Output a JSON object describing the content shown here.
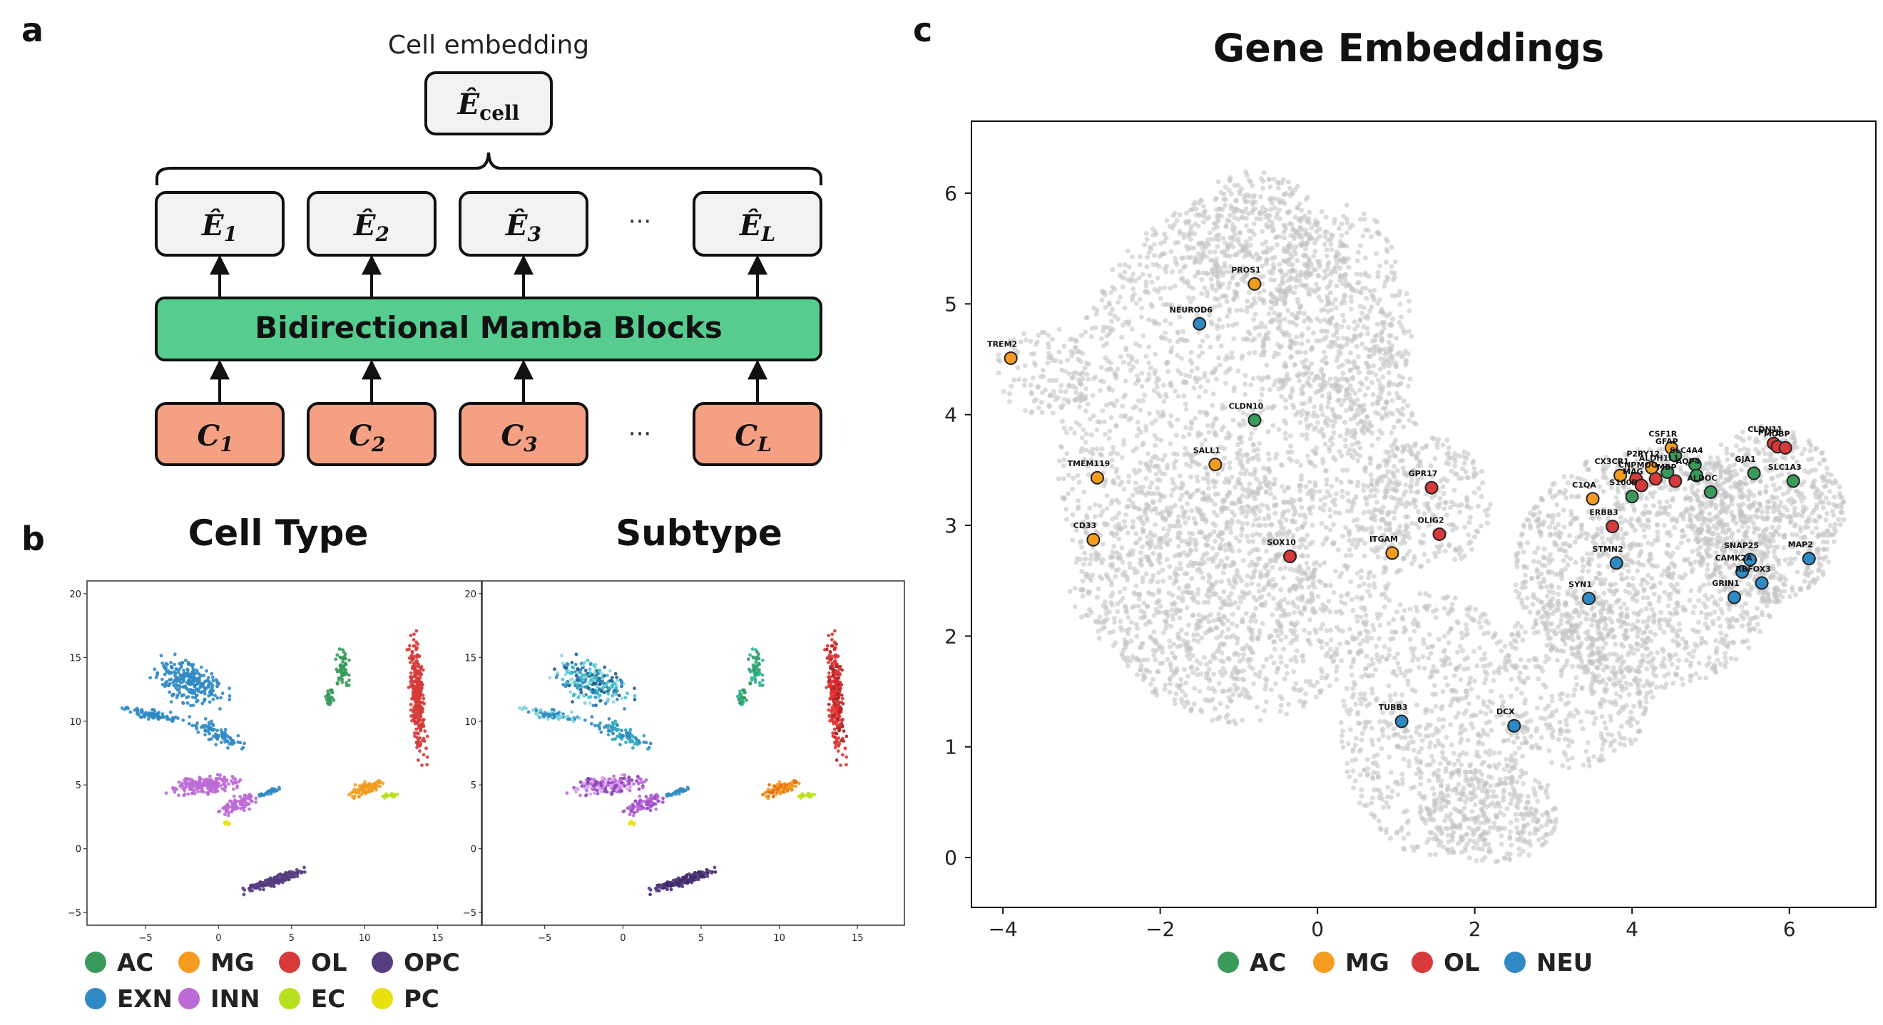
{
  "panels": {
    "a": {
      "letter": "a",
      "top_caption": "Cell embedding",
      "cell_box": {
        "main": "Ê",
        "sub": "cell"
      },
      "outputs": [
        {
          "main": "Ê",
          "sub": "1"
        },
        {
          "main": "Ê",
          "sub": "2"
        },
        {
          "main": "Ê",
          "sub": "3"
        },
        {
          "main": "Ê",
          "sub": "L"
        }
      ],
      "block_label": "Bidirectional Mamba Blocks",
      "inputs": [
        {
          "main": "C",
          "sub": "1"
        },
        {
          "main": "C",
          "sub": "2"
        },
        {
          "main": "C",
          "sub": "3"
        },
        {
          "main": "C",
          "sub": "L"
        }
      ],
      "ellipsis": "···",
      "colors": {
        "block": "#57cc8f",
        "input": "#f5a083",
        "output": "#f2f2f2"
      }
    },
    "b": {
      "letter": "b",
      "plots": [
        {
          "title": "Cell Type",
          "x_ticks": [
            "−5",
            "0",
            "5",
            "10",
            "15"
          ],
          "y_ticks": [
            "20",
            "15",
            "10",
            "5",
            "0",
            "−5"
          ]
        },
        {
          "title": "Subtype",
          "x_ticks": [
            "−5",
            "0",
            "5",
            "10",
            "15"
          ],
          "y_ticks": [
            "20",
            "15",
            "10",
            "5",
            "0",
            "−5"
          ]
        }
      ],
      "legend": [
        {
          "label": "AC",
          "color": "#3a9a5c"
        },
        {
          "label": "MG",
          "color": "#f39c1f"
        },
        {
          "label": "OL",
          "color": "#d63a3a"
        },
        {
          "label": "OPC",
          "color": "#553d7f"
        },
        {
          "label": "EXN",
          "color": "#2f89c4"
        },
        {
          "label": "INN",
          "color": "#bb6ad6"
        },
        {
          "label": "EC",
          "color": "#b8e01c"
        },
        {
          "label": "PC",
          "color": "#e8e010"
        }
      ]
    },
    "c": {
      "letter": "c",
      "chart_data": {
        "type": "scatter",
        "title": "Gene Embeddings",
        "xlim": [
          -4.4,
          7.1
        ],
        "ylim": [
          -0.45,
          6.65
        ],
        "x_ticks": [
          {
            "value": -4,
            "label": "−4"
          },
          {
            "value": -2,
            "label": "−2"
          },
          {
            "value": 0,
            "label": "0"
          },
          {
            "value": 2,
            "label": "2"
          },
          {
            "value": 4,
            "label": "4"
          },
          {
            "value": 6,
            "label": "6"
          }
        ],
        "y_ticks": [
          {
            "value": 0,
            "label": "0"
          },
          {
            "value": 1,
            "label": "1"
          },
          {
            "value": 2,
            "label": "2"
          },
          {
            "value": 3,
            "label": "3"
          },
          {
            "value": 4,
            "label": "4"
          },
          {
            "value": 5,
            "label": "5"
          },
          {
            "value": 6,
            "label": "6"
          }
        ],
        "background_color": "#c4c4c4",
        "legend": [
          {
            "label": "AC",
            "color": "#3a9a5c"
          },
          {
            "label": "MG",
            "color": "#f39c1f"
          },
          {
            "label": "OL",
            "color": "#d63a3a"
          },
          {
            "label": "NEU",
            "color": "#2f89c4"
          }
        ],
        "genes": [
          {
            "name": "PROS1",
            "x": -0.8,
            "y": 5.18,
            "type": "MG"
          },
          {
            "name": "NEUROD6",
            "x": -1.5,
            "y": 4.82,
            "type": "NEU"
          },
          {
            "name": "TREM2",
            "x": -3.9,
            "y": 4.51,
            "type": "MG"
          },
          {
            "name": "CLDN10",
            "x": -0.8,
            "y": 3.95,
            "type": "AC"
          },
          {
            "name": "SALL1",
            "x": -1.3,
            "y": 3.55,
            "type": "MG"
          },
          {
            "name": "TMEM119",
            "x": -2.8,
            "y": 3.43,
            "type": "MG"
          },
          {
            "name": "CD33",
            "x": -2.85,
            "y": 2.87,
            "type": "MG"
          },
          {
            "name": "SOX10",
            "x": -0.35,
            "y": 2.72,
            "type": "OL"
          },
          {
            "name": "GPR17",
            "x": 1.45,
            "y": 3.34,
            "type": "OL"
          },
          {
            "name": "OLIG2",
            "x": 1.55,
            "y": 2.92,
            "type": "OL"
          },
          {
            "name": "ITGAM",
            "x": 0.95,
            "y": 2.75,
            "type": "MG"
          },
          {
            "name": "TUBB3",
            "x": 1.07,
            "y": 1.23,
            "type": "NEU"
          },
          {
            "name": "DCX",
            "x": 2.5,
            "y": 1.19,
            "type": "NEU"
          },
          {
            "name": "CSF1R",
            "x": 4.5,
            "y": 3.7,
            "type": "MG"
          },
          {
            "name": "GFAP",
            "x": 4.55,
            "y": 3.63,
            "type": "AC"
          },
          {
            "name": "P2RY12",
            "x": 4.25,
            "y": 3.52,
            "type": "MG"
          },
          {
            "name": "CX3CR1",
            "x": 3.85,
            "y": 3.45,
            "type": "MG"
          },
          {
            "name": "CNP",
            "x": 4.05,
            "y": 3.42,
            "type": "OL"
          },
          {
            "name": "MAG",
            "x": 4.12,
            "y": 3.36,
            "type": "OL"
          },
          {
            "name": "ALDH1L1",
            "x": 4.45,
            "y": 3.48,
            "type": "AC"
          },
          {
            "name": "MOG",
            "x": 4.3,
            "y": 3.42,
            "type": "OL"
          },
          {
            "name": "MBP",
            "x": 4.55,
            "y": 3.4,
            "type": "OL"
          },
          {
            "name": "SLC4A4",
            "x": 4.8,
            "y": 3.55,
            "type": "AC"
          },
          {
            "name": "AQP4",
            "x": 4.82,
            "y": 3.45,
            "type": "AC"
          },
          {
            "name": "S100B",
            "x": 4.0,
            "y": 3.26,
            "type": "AC"
          },
          {
            "name": "C1QA",
            "x": 3.5,
            "y": 3.24,
            "type": "MG"
          },
          {
            "name": "ERBB3",
            "x": 3.75,
            "y": 2.99,
            "type": "OL"
          },
          {
            "name": "STMN2",
            "x": 3.8,
            "y": 2.66,
            "type": "NEU"
          },
          {
            "name": "SYN1",
            "x": 3.45,
            "y": 2.34,
            "type": "NEU"
          },
          {
            "name": "CLDN11",
            "x": 5.8,
            "y": 3.74,
            "type": "OL"
          },
          {
            "name": "PLP1",
            "x": 5.85,
            "y": 3.71,
            "type": "OL"
          },
          {
            "name": "MOBP",
            "x": 5.95,
            "y": 3.7,
            "type": "OL"
          },
          {
            "name": "SLC1A3",
            "x": 6.05,
            "y": 3.4,
            "type": "AC"
          },
          {
            "name": "ALDOC",
            "x": 5.0,
            "y": 3.3,
            "type": "AC"
          },
          {
            "name": "GJA1",
            "x": 5.55,
            "y": 3.47,
            "type": "AC"
          },
          {
            "name": "SNAP25",
            "x": 5.5,
            "y": 2.69,
            "type": "NEU"
          },
          {
            "name": "CAMK2A",
            "x": 5.4,
            "y": 2.58,
            "type": "NEU"
          },
          {
            "name": "RBFOX3",
            "x": 5.65,
            "y": 2.48,
            "type": "NEU"
          },
          {
            "name": "MAP2",
            "x": 6.25,
            "y": 2.7,
            "type": "NEU"
          },
          {
            "name": "GRIN1",
            "x": 5.3,
            "y": 2.35,
            "type": "NEU"
          }
        ]
      }
    }
  }
}
